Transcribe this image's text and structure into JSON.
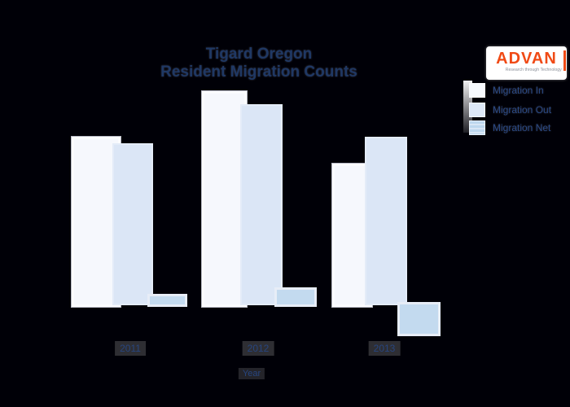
{
  "title": {
    "line1": "Tigard Oregon",
    "line2": "Resident Migration Counts"
  },
  "logo": {
    "name": "ADVAN",
    "tagline": "Research through Technology",
    "brand_color": "#F04A15"
  },
  "legend": {
    "position": "right",
    "items": [
      {
        "label": "Migration In",
        "color": "#F7FAFE"
      },
      {
        "label": "Migration Out",
        "color": "#DDE8F7"
      },
      {
        "label": "Migration Net",
        "color": "#BDD7EE"
      }
    ]
  },
  "x_axis": {
    "label": "Year",
    "ticks": [
      "2011",
      "2012",
      "2013"
    ]
  },
  "colors": {
    "background": "#000007",
    "title_text": "#1F3864",
    "axis_text": "#27457F",
    "bar_in": "#F6F8FD",
    "bar_out": "#DBE6F6",
    "bar_net": "#C3DAEF"
  },
  "chart_data": {
    "type": "bar",
    "title": "Tigard Oregon Resident Migration Counts",
    "xlabel": "Year",
    "ylabel": "",
    "categories": [
      "2011",
      "2012",
      "2013"
    ],
    "series": [
      {
        "name": "Migration In",
        "values": [
          203,
          259,
          170
        ]
      },
      {
        "name": "Migration Out",
        "values": [
          195,
          243,
          203
        ]
      },
      {
        "name": "Migration Net",
        "values": [
          10,
          18,
          -36
        ]
      }
    ],
    "value_units": "relative (no value axis shown in image)",
    "grid": false,
    "legend_position": "right",
    "bar_style": "overlapping within group; net bar of 2013 extends below baseline (negative)"
  }
}
